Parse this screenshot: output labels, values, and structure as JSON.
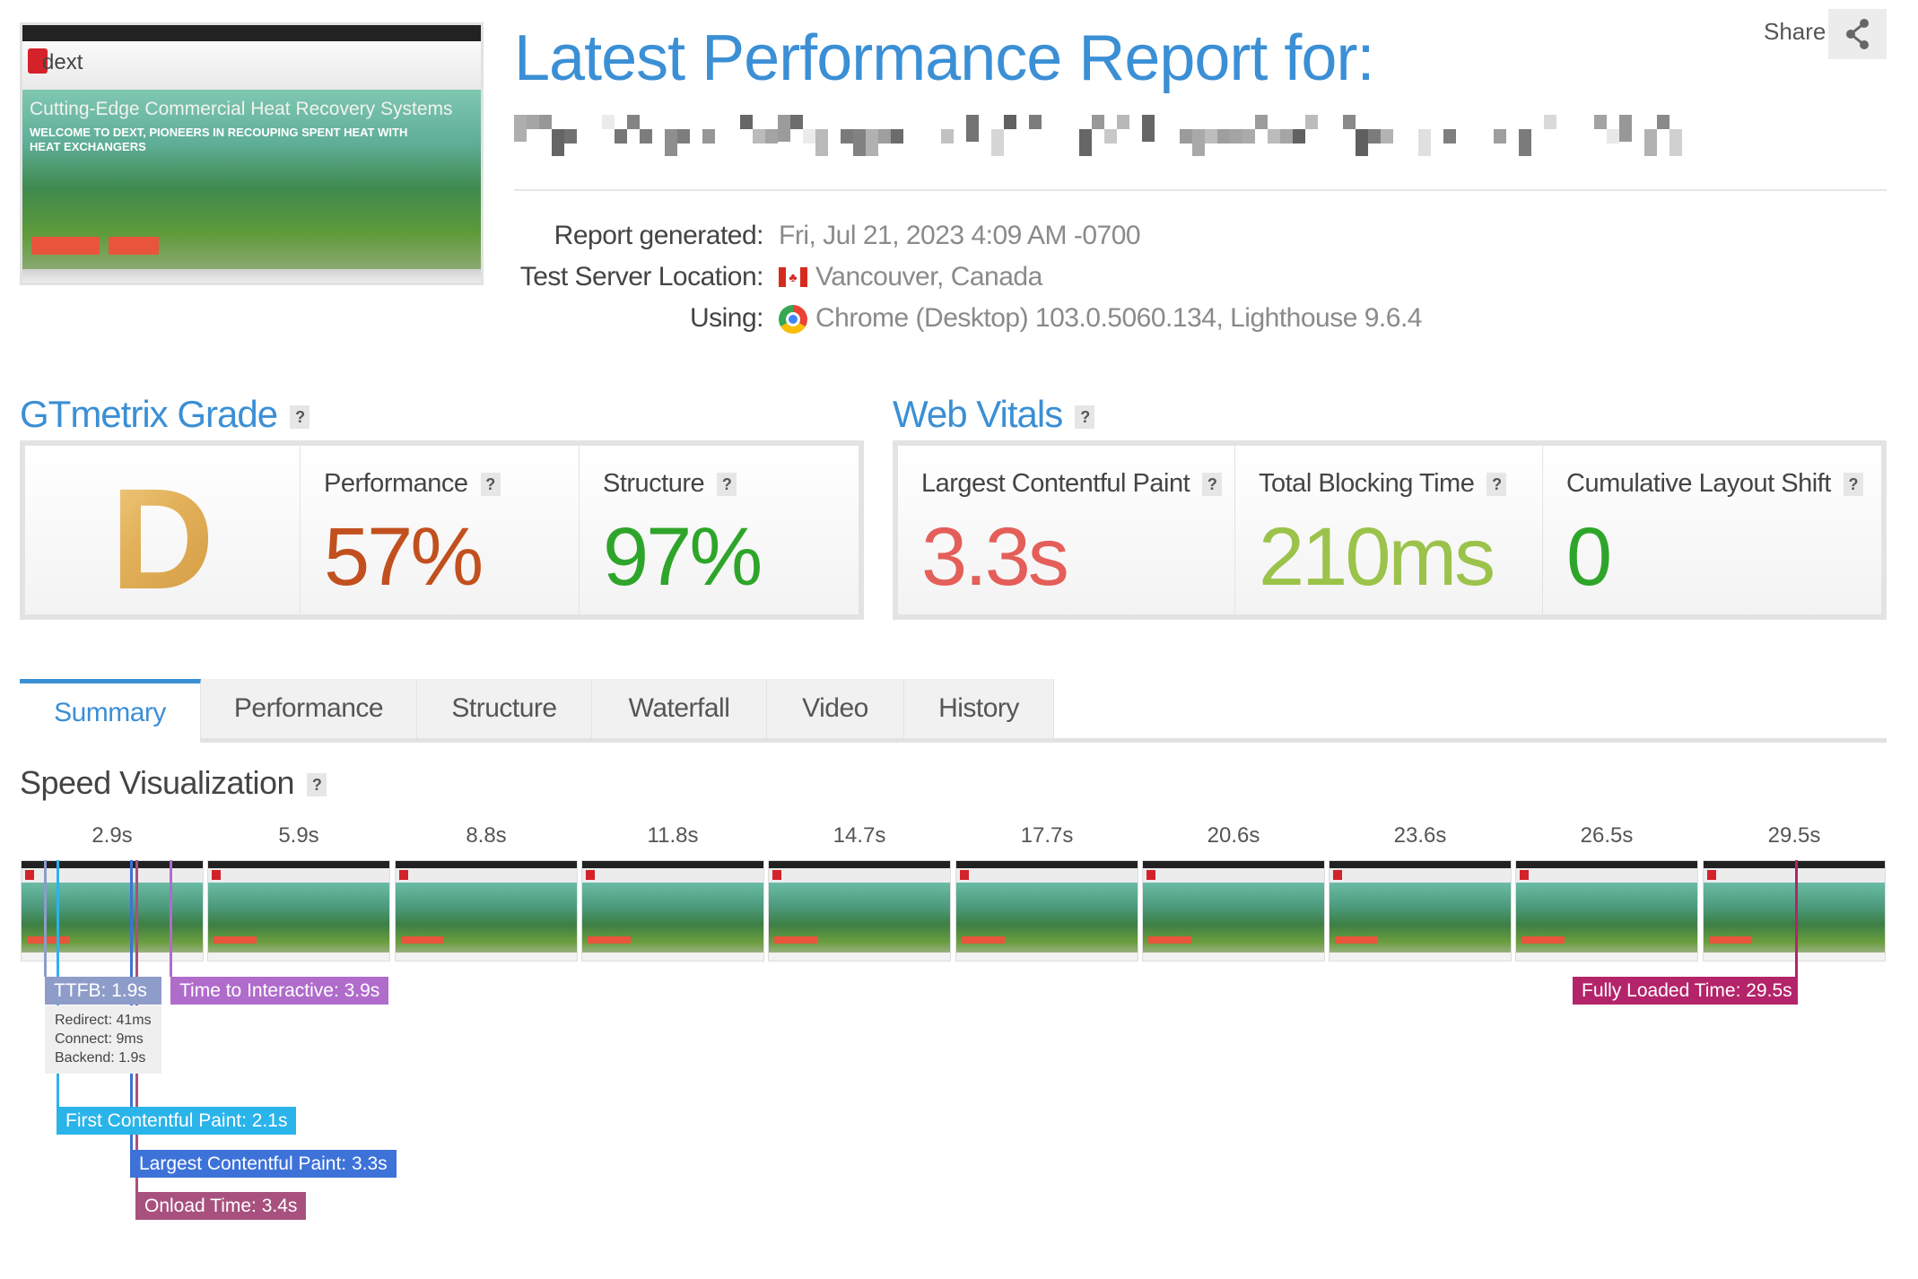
{
  "header": {
    "title": "Latest Performance Report for:",
    "share_label": "Share",
    "thumbnail": {
      "headline": "Cutting-Edge Commercial Heat Recovery Systems",
      "subheadline": "WELCOME TO DEXT, PIONEERS IN RECOUPING SPENT HEAT WITH HEAT EXCHANGERS",
      "logo_text": "dext"
    },
    "info": [
      {
        "label": "Report generated:",
        "value": "Fri, Jul 21, 2023 4:09 AM -0700",
        "icon": ""
      },
      {
        "label": "Test Server Location:",
        "value": "Vancouver, Canada",
        "icon": "canada-flag-icon"
      },
      {
        "label": "Using:",
        "value": "Chrome (Desktop) 103.0.5060.134, Lighthouse 9.6.4",
        "icon": "chrome-icon"
      }
    ]
  },
  "grade": {
    "title": "GTmetrix Grade",
    "letter": "D",
    "performance": {
      "label": "Performance",
      "value": "57%",
      "color": "#c2501f"
    },
    "structure": {
      "label": "Structure",
      "value": "97%",
      "color": "#2ea52a"
    }
  },
  "vitals": {
    "title": "Web Vitals",
    "lcp": {
      "label": "Largest Contentful Paint",
      "value": "3.3s",
      "color": "#e45f59"
    },
    "tbt": {
      "label": "Total Blocking Time",
      "value": "210ms",
      "color": "#9bc34b"
    },
    "cls": {
      "label": "Cumulative Layout Shift",
      "value": "0",
      "color": "#2ea52a"
    }
  },
  "tabs": [
    "Summary",
    "Performance",
    "Structure",
    "Waterfall",
    "Video",
    "History"
  ],
  "active_tab": "Summary",
  "speed": {
    "title": "Speed Visualization",
    "frames": [
      "2.9s",
      "5.9s",
      "8.8s",
      "11.8s",
      "14.7s",
      "17.7s",
      "20.6s",
      "23.6s",
      "26.5s",
      "29.5s"
    ],
    "ttfb": {
      "label": "TTFB: 1.9s",
      "color": "#8e9cc9",
      "details": [
        "Redirect: 41ms",
        "Connect: 9ms",
        "Backend: 1.9s"
      ]
    },
    "tti": {
      "label": "Time to Interactive: 3.9s",
      "color": "#b06ccb"
    },
    "fcp": {
      "label": "First Contentful Paint: 2.1s",
      "color": "#2ab4ea"
    },
    "lcp": {
      "label": "Largest Contentful Paint: 3.3s",
      "color": "#3d72d9"
    },
    "onload": {
      "label": "Onload Time: 3.4s",
      "color": "#a8517e"
    },
    "fully_loaded": {
      "label": "Fully Loaded Time: 29.5s",
      "color": "#b4246a"
    }
  }
}
